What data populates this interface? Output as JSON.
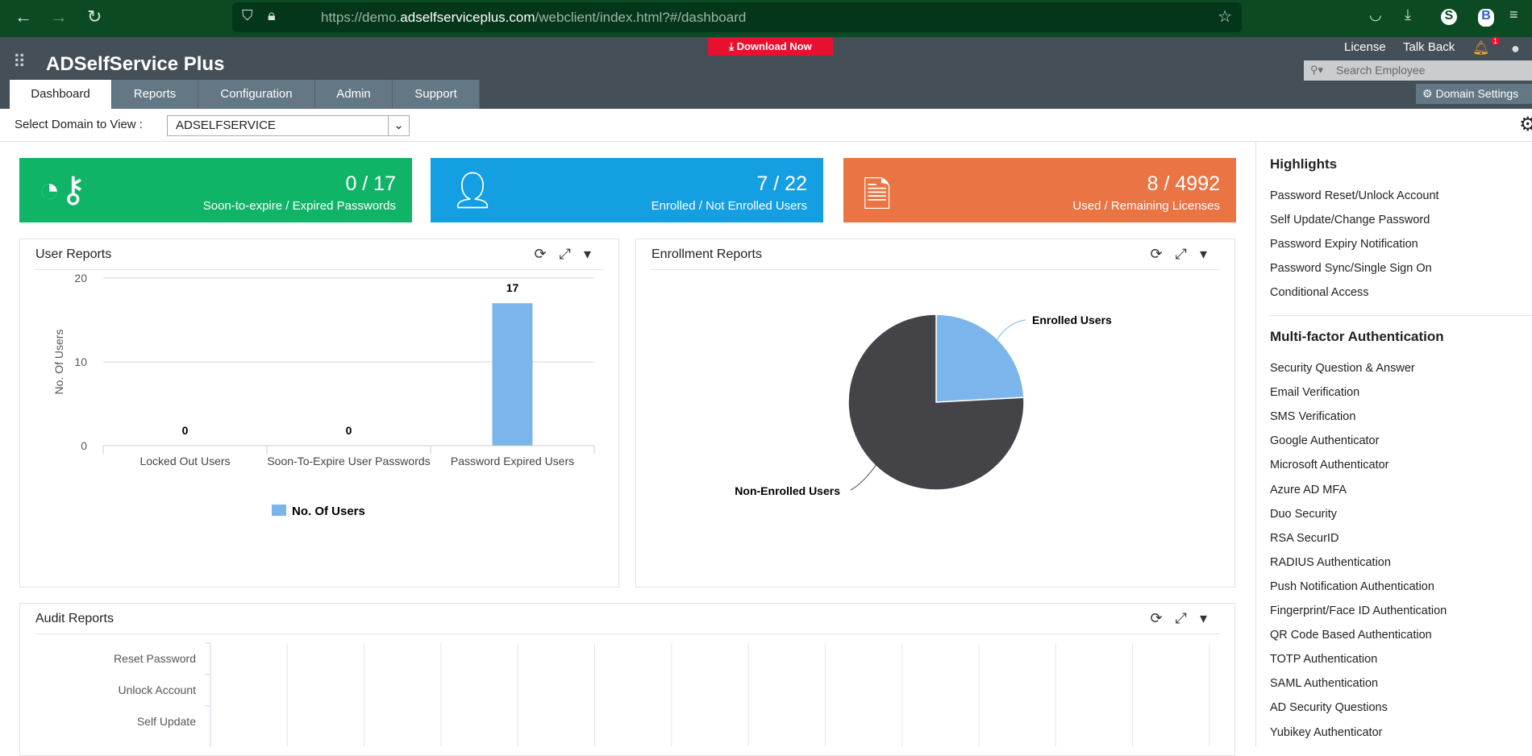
{
  "browser": {
    "url_prefix": "https://demo.",
    "url_host": "adselfserviceplus.com",
    "url_path": "/webclient/index.html?#/dashboard"
  },
  "app": {
    "logo": "ADSelfService Plus",
    "download": "Download Now",
    "license": "License",
    "talk_back": "Talk Back",
    "notification_count": "1",
    "search_placeholder": "Search Employee",
    "domain_settings": "Domain Settings"
  },
  "tabs": [
    "Dashboard",
    "Reports",
    "Configuration",
    "Admin",
    "Support"
  ],
  "domain": {
    "label": "Select Domain to View :",
    "value": "ADSELFSERVICE"
  },
  "cards": [
    {
      "value": "0 / 17",
      "label": "Soon-to-expire / Expired Passwords",
      "color": "#10b467",
      "icon": "clock-key-icon"
    },
    {
      "value": "7 / 22",
      "label": "Enrolled / Not Enrolled Users",
      "color": "#139fe2",
      "icon": "user-add-icon"
    },
    {
      "value": "8 / 4992",
      "label": "Used / Remaining Licenses",
      "color": "#ea7443",
      "icon": "certificate-icon"
    }
  ],
  "user_reports": {
    "title": "User Reports"
  },
  "enrollment_reports": {
    "title": "Enrollment Reports"
  },
  "audit_reports": {
    "title": "Audit Reports"
  },
  "chart_data": [
    {
      "type": "bar",
      "ylabel": "No. Of Users",
      "categories": [
        "Locked Out Users",
        "Soon-To-Expire User Passwords",
        "Password Expired Users"
      ],
      "series": [
        {
          "name": "No. Of Users",
          "values": [
            0,
            0,
            17
          ]
        }
      ],
      "ylim": [
        0,
        20
      ],
      "yticks": [
        0,
        10,
        20
      ],
      "color": "#7cb5ec",
      "legend": "bottom",
      "grid": true
    },
    {
      "type": "pie",
      "labels": [
        "Enrolled Users",
        "Non-Enrolled Users"
      ],
      "values": [
        7,
        22
      ],
      "colors": [
        "#7cb5ec",
        "#434348"
      ]
    },
    {
      "type": "bar",
      "orientation": "horizontal",
      "categories": [
        "Reset Password",
        "Unlock Account",
        "Self Update"
      ],
      "grid": true
    }
  ],
  "highlights": {
    "title": "Highlights",
    "items": [
      "Password Reset/Unlock Account",
      "Self Update/Change Password",
      "Password Expiry Notification",
      "Password Sync/Single Sign On",
      "Conditional Access"
    ]
  },
  "mfa": {
    "title": "Multi-factor Authentication",
    "items": [
      "Security Question & Answer",
      "Email Verification",
      "SMS Verification",
      "Google Authenticator",
      "Microsoft Authenticator",
      "Azure AD MFA",
      "Duo Security",
      "RSA SecurID",
      "RADIUS Authentication",
      "Push Notification Authentication",
      "Fingerprint/Face ID Authentication",
      "QR Code Based Authentication",
      "TOTP Authentication",
      "SAML Authentication",
      "AD Security Questions",
      "Yubikey Authenticator"
    ]
  }
}
